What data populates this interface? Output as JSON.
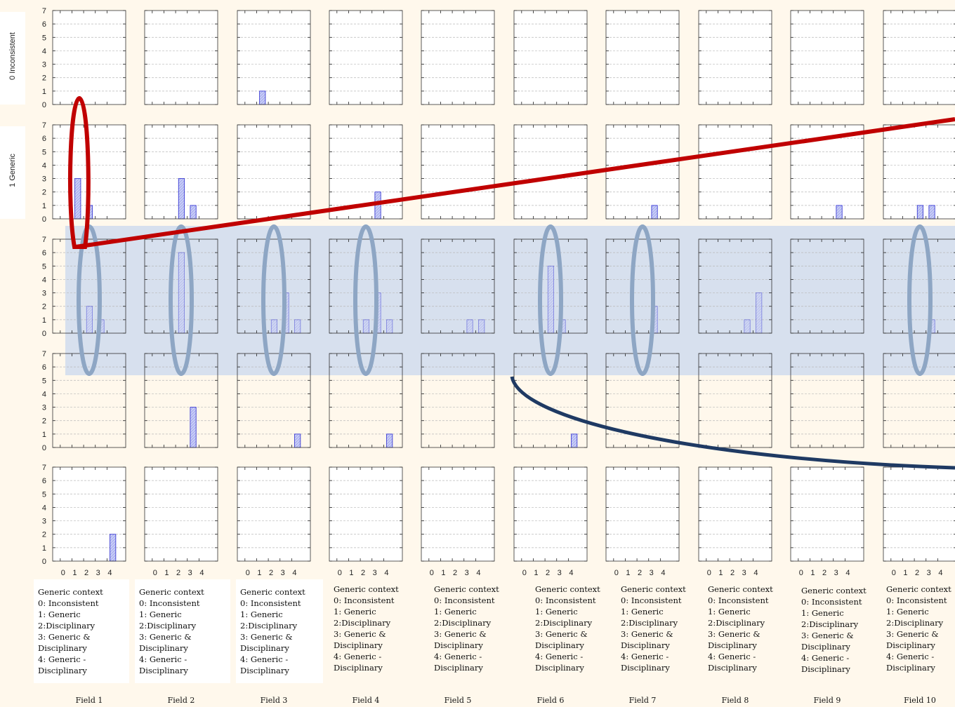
{
  "chart_data": {
    "type": "bar",
    "layout": "small-multiples grid",
    "rows": [
      {
        "label": "0 Inconsistent"
      },
      {
        "label": "1 Generic"
      },
      {
        "label": ""
      },
      {
        "label": ""
      },
      {
        "label": ""
      }
    ],
    "x_ticks": [
      "0",
      "1",
      "2",
      "3",
      "4"
    ],
    "y_ticks": [
      "0",
      "1",
      "2",
      "3",
      "4",
      "5",
      "6",
      "7"
    ],
    "ylim": [
      0,
      7
    ],
    "xlim": [
      0,
      4
    ],
    "grid": true,
    "bar_fill": "#c8cdf6",
    "bar_edge": "#2a2ad0",
    "fields": [
      {
        "name": "Field 1",
        "values": [
          [
            0,
            0,
            0,
            0,
            0
          ],
          [
            0,
            3,
            1,
            0,
            0
          ],
          [
            0,
            0,
            2,
            1,
            0
          ],
          [
            0,
            0,
            0,
            0,
            0
          ],
          [
            0,
            0,
            0,
            0,
            2
          ]
        ]
      },
      {
        "name": "Field 2",
        "values": [
          [
            0,
            0,
            0,
            0,
            0
          ],
          [
            0,
            0,
            3,
            1,
            0
          ],
          [
            0,
            0,
            6,
            0,
            0
          ],
          [
            0,
            0,
            0,
            3,
            0
          ],
          [
            0,
            0,
            0,
            0,
            0
          ]
        ]
      },
      {
        "name": "Field 3",
        "values": [
          [
            0,
            1,
            0,
            0,
            0
          ],
          [
            0,
            0,
            0,
            0,
            0
          ],
          [
            0,
            0,
            1,
            3,
            1
          ],
          [
            0,
            0,
            0,
            0,
            1
          ],
          [
            0,
            0,
            0,
            0,
            0
          ]
        ]
      },
      {
        "name": "Field 4",
        "values": [
          [
            0,
            0,
            0,
            0,
            0
          ],
          [
            0,
            0,
            0,
            2,
            0
          ],
          [
            0,
            0,
            1,
            3,
            1
          ],
          [
            0,
            0,
            0,
            0,
            1
          ],
          [
            0,
            0,
            0,
            0,
            0
          ]
        ]
      },
      {
        "name": "Field 5",
        "values": [
          [
            0,
            0,
            0,
            0,
            0
          ],
          [
            0,
            0,
            0,
            0,
            0
          ],
          [
            0,
            0,
            0,
            1,
            1
          ],
          [
            0,
            0,
            0,
            0,
            0
          ],
          [
            0,
            0,
            0,
            0,
            0
          ]
        ]
      },
      {
        "name": "Field 6",
        "values": [
          [
            0,
            0,
            0,
            0,
            0
          ],
          [
            0,
            0,
            0,
            0,
            0
          ],
          [
            0,
            0,
            5,
            1,
            0
          ],
          [
            0,
            0,
            0,
            0,
            1
          ],
          [
            0,
            0,
            0,
            0,
            0
          ]
        ]
      },
      {
        "name": "Field 7",
        "values": [
          [
            0,
            0,
            0,
            0,
            0
          ],
          [
            0,
            0,
            0,
            1,
            0
          ],
          [
            0,
            0,
            0,
            2,
            0
          ],
          [
            0,
            0,
            0,
            0,
            0
          ],
          [
            0,
            0,
            0,
            0,
            0
          ]
        ]
      },
      {
        "name": "Field 8",
        "values": [
          [
            0,
            0,
            0,
            0,
            0
          ],
          [
            0,
            0,
            0,
            0,
            0
          ],
          [
            0,
            0,
            0,
            1,
            3
          ],
          [
            0,
            0,
            0,
            0,
            0
          ],
          [
            0,
            0,
            0,
            0,
            0
          ]
        ]
      },
      {
        "name": "Field 9",
        "values": [
          [
            0,
            0,
            0,
            0,
            0
          ],
          [
            0,
            0,
            0,
            1,
            0
          ],
          [
            0,
            0,
            0,
            0,
            0
          ],
          [
            0,
            0,
            0,
            0,
            0
          ],
          [
            0,
            0,
            0,
            0,
            0
          ]
        ]
      },
      {
        "name": "Field 10",
        "values": [
          [
            0,
            0,
            0,
            0,
            0
          ],
          [
            0,
            0,
            1,
            1,
            0
          ],
          [
            0,
            0,
            0,
            1,
            0
          ],
          [
            0,
            0,
            0,
            0,
            0
          ],
          [
            0,
            0,
            0,
            0,
            0
          ]
        ]
      }
    ],
    "legend_lines": [
      "Generic context",
      "0: Inconsistent",
      "1: Generic",
      "2:Disciplinary",
      "3: Generic &",
      "Disciplinary",
      "4: Generic -",
      "Disciplinary"
    ],
    "annotations": {
      "highlight_band_color": "#c9d8ef",
      "ellipse_color": "#8ea6c4",
      "red_line_color": "#c00000",
      "navy_curve_color": "#1f3a63"
    }
  }
}
